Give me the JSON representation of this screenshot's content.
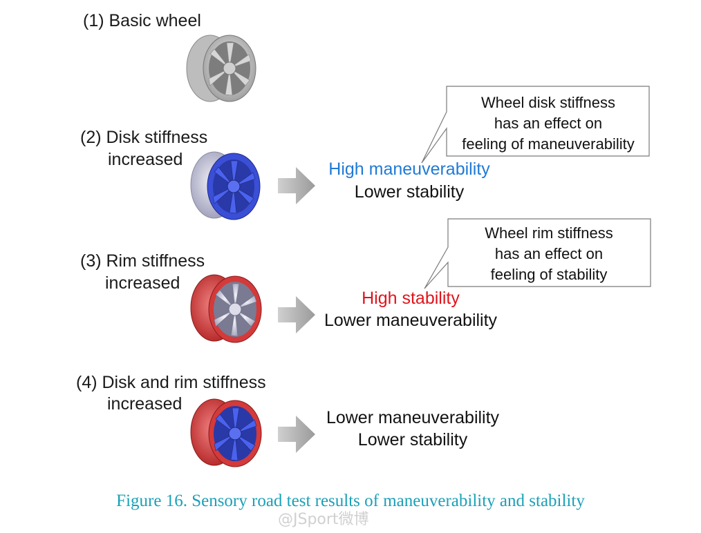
{
  "colors": {
    "maneuverability_accent": "#1f7ad6",
    "stability_accent": "#e0141c",
    "caption": "#1aa0b8",
    "disk_blue": "#3a4fd6",
    "rim_red": "#d43a3a",
    "wheel_gray": "#c9c9c9",
    "arrow_gray": "#a8a8a8"
  },
  "cases": [
    {
      "label_line1": "(1) Basic wheel",
      "label_line2": "",
      "wheel": "basic"
    },
    {
      "label_line1": "(2) Disk stiffness",
      "label_line2": "increased",
      "wheel": "disk",
      "result_line1": "High maneuverability",
      "result_line2": "Lower stability"
    },
    {
      "label_line1": "(3) Rim stiffness",
      "label_line2": "increased",
      "wheel": "rim",
      "result_line1": "High stability",
      "result_line2": "Lower maneuverability"
    },
    {
      "label_line1": "(4) Disk and rim stiffness",
      "label_line2": "increased",
      "wheel": "disk-rim",
      "result_line1": "Lower maneuverability",
      "result_line2": "Lower stability"
    }
  ],
  "callouts": [
    {
      "lines": [
        "Wheel disk stiffness",
        "has an effect on",
        "feeling of maneuverability"
      ]
    },
    {
      "lines": [
        "Wheel rim stiffness",
        "has an effect on",
        "feeling of stability"
      ]
    }
  ],
  "caption": "Figure 16. Sensory road test results of maneuverability and stability",
  "watermark": "@JSport微博"
}
